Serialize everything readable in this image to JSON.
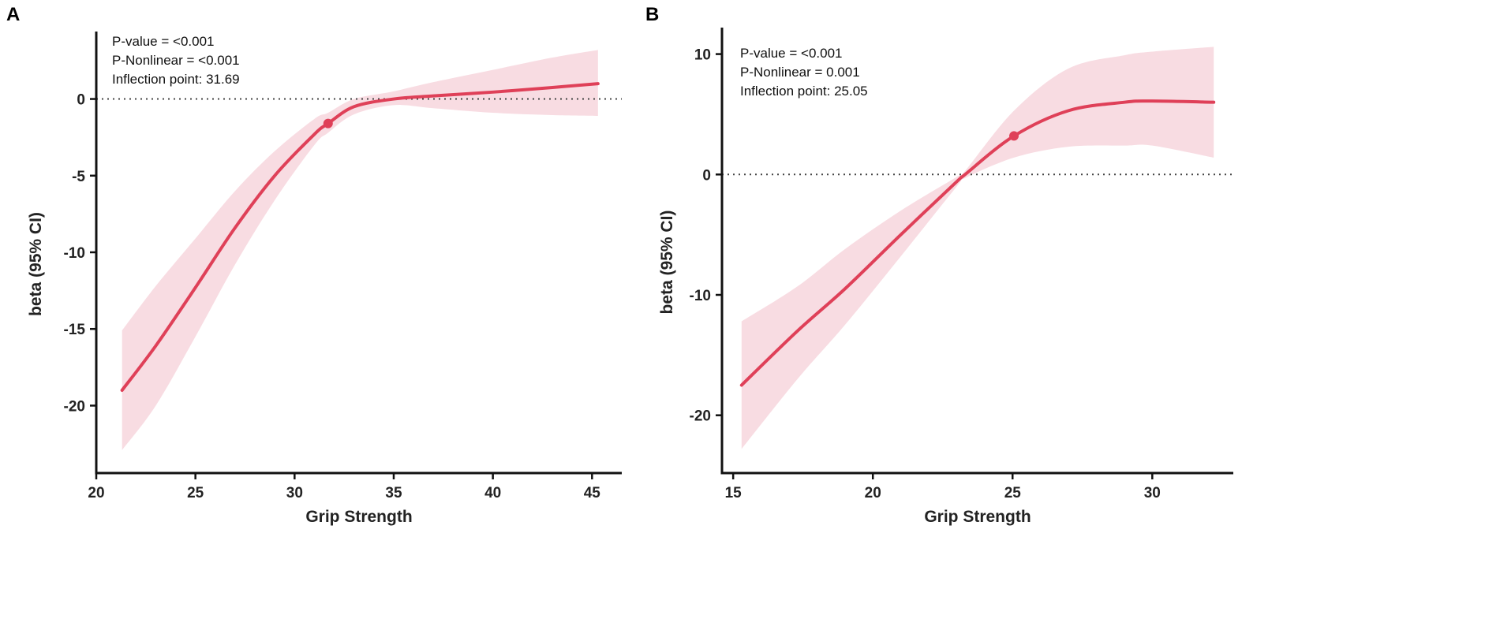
{
  "chart_data": [
    {
      "type": "line",
      "panel_label": "A",
      "xlabel": "Grip Strength",
      "ylabel": "beta (95% CI)",
      "xlim": [
        20,
        46.5
      ],
      "ylim": [
        -24.4,
        4.4
      ],
      "xticks": [
        20,
        25,
        30,
        35,
        40,
        45
      ],
      "xtick_labels": [
        "20",
        "25",
        "30",
        "35",
        "40",
        "45"
      ],
      "yticks": [
        0,
        -5,
        -10,
        -15,
        -20
      ],
      "ytick_labels": [
        "0",
        "-5",
        "-10",
        "-15",
        "-20"
      ],
      "reference_line_y": 0,
      "annotations": [
        "P-value = <0.001",
        "P-Nonlinear = <0.001",
        "Inflection point: 31.69"
      ],
      "inflection_point": {
        "x": 31.69,
        "y": -1.6
      },
      "series": [
        {
          "name": "beta",
          "x": [
            21.3,
            23,
            25,
            27,
            29,
            31,
            31.69,
            33,
            35,
            37,
            40,
            43,
            45.3
          ],
          "y": [
            -19.0,
            -16.1,
            -12.3,
            -8.4,
            -5.0,
            -2.3,
            -1.6,
            -0.5,
            0.0,
            0.2,
            0.45,
            0.75,
            1.0
          ],
          "lower": [
            -22.9,
            -20.0,
            -15.5,
            -10.8,
            -6.6,
            -3.0,
            -2.2,
            -1.0,
            -0.4,
            -0.6,
            -0.9,
            -1.05,
            -1.1
          ],
          "upper": [
            -15.1,
            -12.2,
            -9.1,
            -6.0,
            -3.4,
            -1.3,
            -0.9,
            0.0,
            0.5,
            1.1,
            1.9,
            2.7,
            3.2
          ]
        }
      ]
    },
    {
      "type": "line",
      "panel_label": "B",
      "xlabel": "Grip Strength",
      "ylabel": "beta (95% CI)",
      "xlim": [
        14.6,
        32.9
      ],
      "ylim": [
        -24.8,
        12.2
      ],
      "xticks": [
        15,
        20,
        25,
        30
      ],
      "xtick_labels": [
        "15",
        "20",
        "25",
        "30"
      ],
      "yticks": [
        10,
        0,
        -10,
        -20
      ],
      "ytick_labels": [
        "10",
        "0",
        "-10",
        "-20"
      ],
      "reference_line_y": 0,
      "annotations": [
        "P-value = <0.001",
        "P-Nonlinear = 0.001",
        "Inflection point: 25.05"
      ],
      "inflection_point": {
        "x": 25.05,
        "y": 3.2
      },
      "series": [
        {
          "name": "beta",
          "x": [
            15.3,
            17.3,
            19,
            21,
            23,
            23.3,
            25.05,
            27,
            29,
            30,
            32.2
          ],
          "y": [
            -17.5,
            -13.0,
            -9.5,
            -5.0,
            -0.6,
            0.0,
            3.2,
            5.3,
            6.0,
            6.1,
            6.0
          ],
          "lower": [
            -22.8,
            -17.0,
            -12.5,
            -6.8,
            -1.0,
            -0.3,
            1.4,
            2.3,
            2.4,
            2.4,
            1.4
          ],
          "upper": [
            -12.2,
            -9.3,
            -6.2,
            -3.0,
            -0.2,
            0.3,
            5.3,
            8.8,
            9.9,
            10.2,
            10.6
          ]
        }
      ]
    }
  ]
}
